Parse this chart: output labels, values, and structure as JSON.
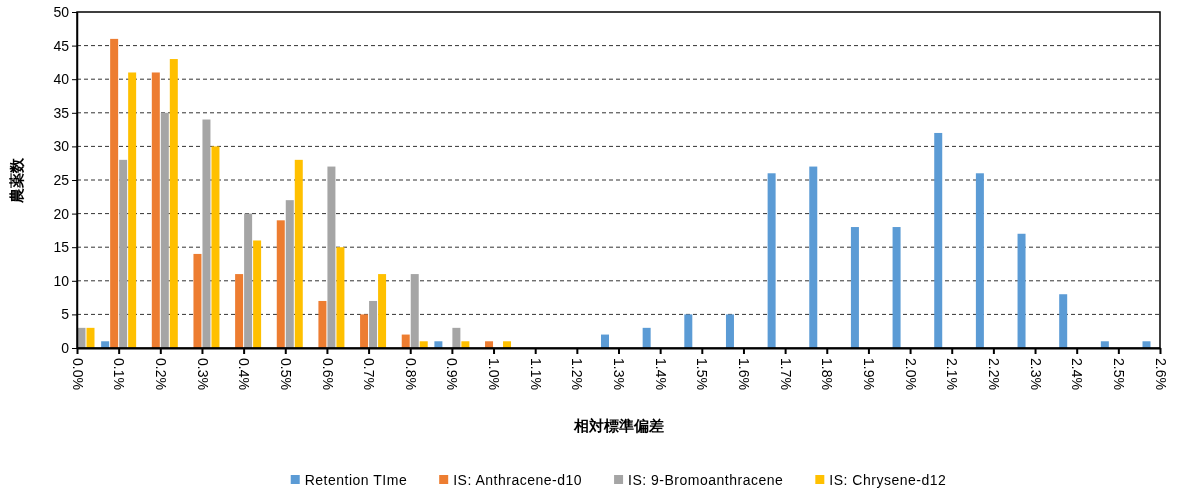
{
  "chart_data": {
    "type": "bar",
    "xlabel": "相対標準偏差",
    "ylabel": "農薬数",
    "categories": [
      "0.0%",
      "0.1%",
      "0.2%",
      "0.3%",
      "0.4%",
      "0.5%",
      "0.6%",
      "0.7%",
      "0.8%",
      "0.9%",
      "1.0%",
      "1.1%",
      "1.2%",
      "1.3%",
      "1.4%",
      "1.5%",
      "1.6%",
      "1.7%",
      "1.8%",
      "1.9%",
      "2.0%",
      "2.1%",
      "2.2%",
      "2.3%",
      "2.4%",
      "2.5%",
      "2.6%"
    ],
    "series": [
      {
        "name": "Retention TIme",
        "color": "#5b9bd5",
        "values": [
          null,
          1,
          0,
          0,
          0,
          0,
          0,
          0,
          0,
          1,
          0,
          0,
          0,
          2,
          3,
          5,
          5,
          26,
          27,
          18,
          18,
          32,
          26,
          17,
          8,
          1,
          1
        ]
      },
      {
        "name": "IS: Anthracene-d10",
        "color": "#ed7d31",
        "values": [
          null,
          46,
          41,
          14,
          11,
          19,
          7,
          5,
          2,
          0,
          1,
          0,
          0,
          0,
          0,
          0,
          0,
          0,
          0,
          0,
          0,
          0,
          0,
          0,
          0,
          0,
          null
        ]
      },
      {
        "name": "IS: 9-Bromoanthracene",
        "color": "#a5a5a5",
        "values": [
          3,
          28,
          35,
          34,
          20,
          22,
          27,
          7,
          11,
          3,
          0,
          0,
          0,
          0,
          0,
          0,
          0,
          0,
          0,
          0,
          0,
          0,
          0,
          0,
          0,
          0,
          null
        ]
      },
      {
        "name": "IS: Chrysene-d12",
        "color": "#ffc000",
        "values": [
          3,
          41,
          43,
          30,
          16,
          28,
          15,
          11,
          1,
          1,
          1,
          0,
          0,
          0,
          0,
          0,
          0,
          0,
          0,
          0,
          0,
          0,
          0,
          0,
          0,
          0,
          null
        ]
      }
    ],
    "ylim": [
      0,
      50
    ],
    "yticks": [
      0,
      5,
      10,
      15,
      20,
      25,
      30,
      35,
      40,
      45,
      50
    ],
    "grid": "y",
    "legend": "bottom"
  }
}
